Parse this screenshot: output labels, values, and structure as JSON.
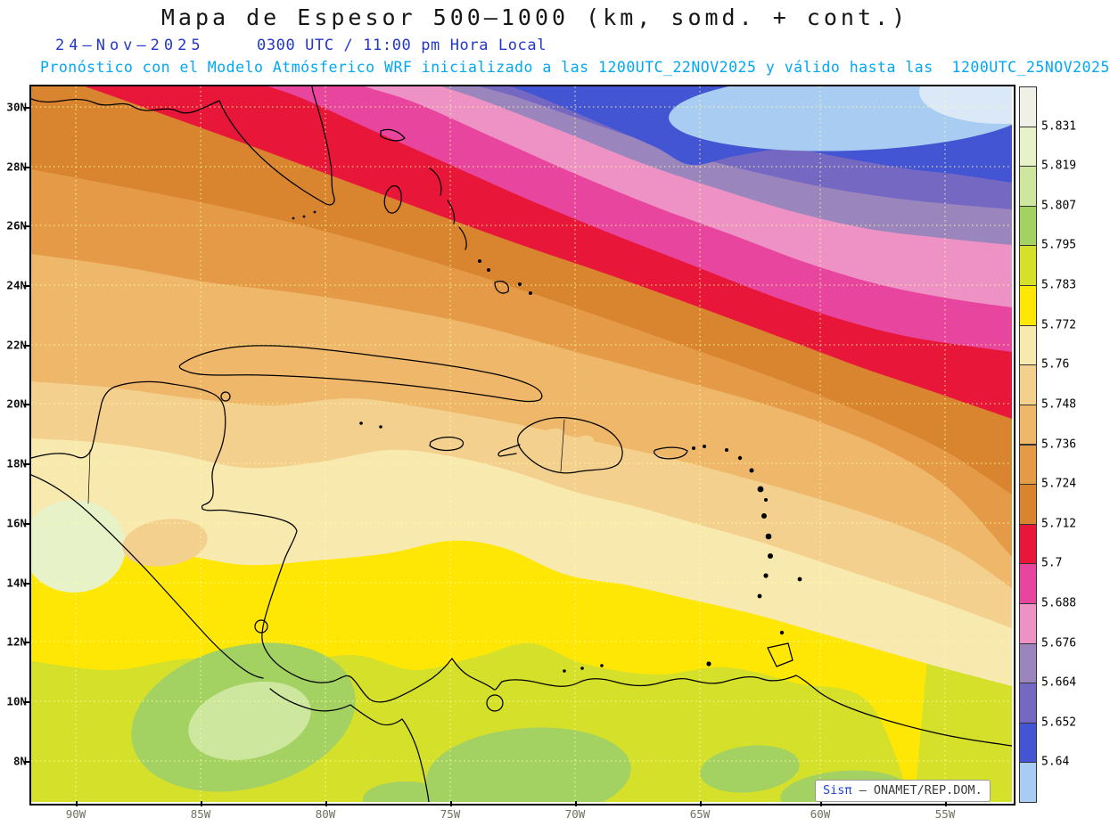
{
  "header": {
    "title": "Mapa de Espesor 500–1000 (km, somd. + cont.)",
    "date": "24–Nov–2025",
    "time": "0300 UTC / 11:00 pm Hora Local",
    "forecast": "Pronóstico con el Modelo Atmósferico WRF inicializado a las 1200UTC_22NOV2025 y válido hasta las  1200UTC_25NOV2025"
  },
  "axes": {
    "lat_labels": [
      "30N",
      "28N",
      "26N",
      "24N",
      "22N",
      "20N",
      "18N",
      "16N",
      "14N",
      "12N",
      "10N",
      "8N"
    ],
    "lon_labels": [
      "90W",
      "85W",
      "80W",
      "75W",
      "70W",
      "65W",
      "60W",
      "55W"
    ]
  },
  "legend": {
    "values": [
      "5.831",
      "5.819",
      "5.807",
      "5.795",
      "5.783",
      "5.772",
      "5.76",
      "5.748",
      "5.736",
      "5.724",
      "5.712",
      "5.7",
      "5.688",
      "5.676",
      "5.664",
      "5.652",
      "5.64"
    ],
    "bands": [
      {
        "name": "white",
        "color": "#f0f0e6"
      },
      {
        "name": "pale-green",
        "color": "#e7f2c9"
      },
      {
        "name": "light-green",
        "color": "#cde79e"
      },
      {
        "name": "green",
        "color": "#a3d162"
      },
      {
        "name": "yellow-green",
        "color": "#d5e02b"
      },
      {
        "name": "yellow",
        "color": "#ffe705"
      },
      {
        "name": "cream",
        "color": "#f8e9ae"
      },
      {
        "name": "tan",
        "color": "#f3d08e"
      },
      {
        "name": "light-orange",
        "color": "#eeb76a"
      },
      {
        "name": "orange",
        "color": "#e59a47"
      },
      {
        "name": "dark-orange",
        "color": "#d9842f"
      },
      {
        "name": "red",
        "color": "#e81638"
      },
      {
        "name": "magenta",
        "color": "#e8459e"
      },
      {
        "name": "pink",
        "color": "#ee92c6"
      },
      {
        "name": "purple",
        "color": "#9b85bd"
      },
      {
        "name": "blue-purple",
        "color": "#7568c2"
      },
      {
        "name": "dark-blue",
        "color": "#4355d2"
      },
      {
        "name": "light-blue",
        "color": "#a9cdf2"
      }
    ]
  },
  "map": {
    "extra_colors": {
      "pale_corner": "#dbe8f7"
    },
    "credit_brand": "Sisπ",
    "credit_text": " – ONAMET/REP.DOM."
  }
}
